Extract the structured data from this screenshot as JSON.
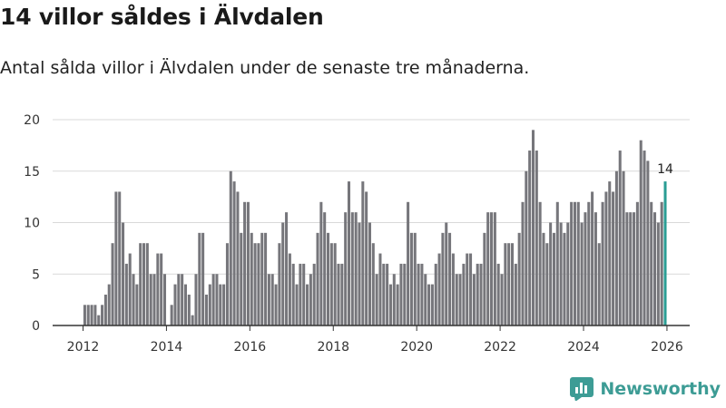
{
  "header": {
    "title": "14 villor såldes i Älvdalen",
    "subtitle": "Antal sålda villor i Älvdalen under de senaste tre månaderna."
  },
  "brand": {
    "name": "Newsworthy"
  },
  "colors": {
    "bar": "#76767b",
    "highlight": "#2a9d94",
    "axis": "#333333",
    "grid": "#d9d9d9"
  },
  "chart_data": {
    "type": "bar",
    "title": "14 villor såldes i Älvdalen",
    "subtitle": "Antal sålda villor i Älvdalen under de senaste tre månaderna.",
    "xlabel": "",
    "ylabel": "",
    "ylim": [
      0,
      20
    ],
    "yticks": [
      0,
      5,
      10,
      15,
      20
    ],
    "x_start": {
      "year": 2012,
      "month": 1
    },
    "xticks": [
      2012,
      2014,
      2016,
      2018,
      2020,
      2022,
      2024,
      2026
    ],
    "grid": true,
    "annotation": {
      "text": "14"
    },
    "values": [
      2,
      2,
      2,
      2,
      1,
      2,
      3,
      4,
      8,
      13,
      13,
      10,
      6,
      7,
      5,
      4,
      8,
      8,
      8,
      5,
      5,
      7,
      7,
      5,
      0,
      2,
      4,
      5,
      5,
      4,
      3,
      1,
      5,
      9,
      9,
      3,
      4,
      5,
      5,
      4,
      4,
      8,
      15,
      14,
      13,
      9,
      12,
      12,
      9,
      8,
      8,
      9,
      9,
      5,
      5,
      4,
      8,
      10,
      11,
      7,
      6,
      4,
      6,
      6,
      4,
      5,
      6,
      9,
      12,
      11,
      9,
      8,
      8,
      6,
      6,
      11,
      14,
      11,
      11,
      10,
      14,
      13,
      10,
      8,
      5,
      7,
      6,
      6,
      4,
      5,
      4,
      6,
      6,
      12,
      9,
      9,
      6,
      6,
      5,
      4,
      4,
      6,
      7,
      9,
      10,
      9,
      7,
      5,
      5,
      6,
      7,
      7,
      5,
      6,
      6,
      9,
      11,
      11,
      11,
      6,
      5,
      8,
      8,
      8,
      6,
      9,
      12,
      15,
      17,
      19,
      17,
      12,
      9,
      8,
      10,
      9,
      12,
      10,
      9,
      10,
      12,
      12,
      12,
      10,
      11,
      12,
      13,
      11,
      8,
      12,
      13,
      14,
      13,
      15,
      17,
      15,
      11,
      11,
      11,
      12,
      18,
      17,
      16,
      12,
      11,
      10,
      12,
      14
    ]
  }
}
